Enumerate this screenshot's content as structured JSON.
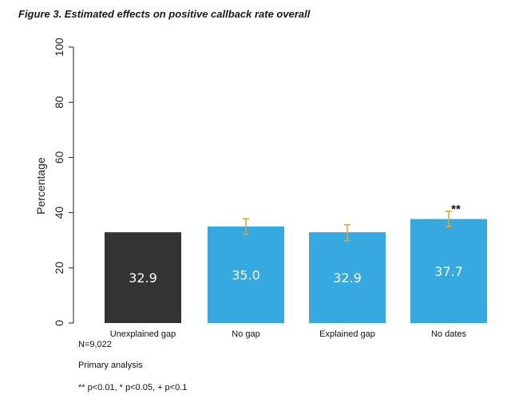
{
  "figure": {
    "title": "Figure 3. Estimated effects on positive callback rate overall"
  },
  "notes": {
    "n": "N=9,022",
    "analysis": "Primary analysis",
    "significance": "** p<0.01, * p<0.05, + p<0.1"
  },
  "chart_data": {
    "type": "bar",
    "title": "Figure 3. Estimated effects on positive callback rate overall",
    "xlabel": "",
    "ylabel": "Percentage",
    "ylim": [
      0,
      100
    ],
    "yticks": [
      0,
      20,
      40,
      60,
      80,
      100
    ],
    "ytick_labels": [
      "0",
      "20",
      "40",
      "60",
      "80",
      "100"
    ],
    "grid": false,
    "legend": "none",
    "categories": [
      "Unexplained gap",
      "No gap",
      "Explained gap",
      "No dates"
    ],
    "values": [
      32.9,
      35.0,
      32.9,
      37.7
    ],
    "value_labels": [
      "32.9",
      "35.0",
      "32.9",
      "37.7"
    ],
    "error_bars": [
      null,
      [
        32.2,
        37.8
      ],
      [
        29.9,
        35.6
      ],
      [
        34.9,
        40.5
      ]
    ],
    "significance_markers": [
      "",
      "",
      "",
      "**"
    ],
    "colors": [
      "#333333",
      "#36a9e1",
      "#36a9e1",
      "#36a9e1"
    ],
    "error_bar_color": "#f0a020"
  }
}
